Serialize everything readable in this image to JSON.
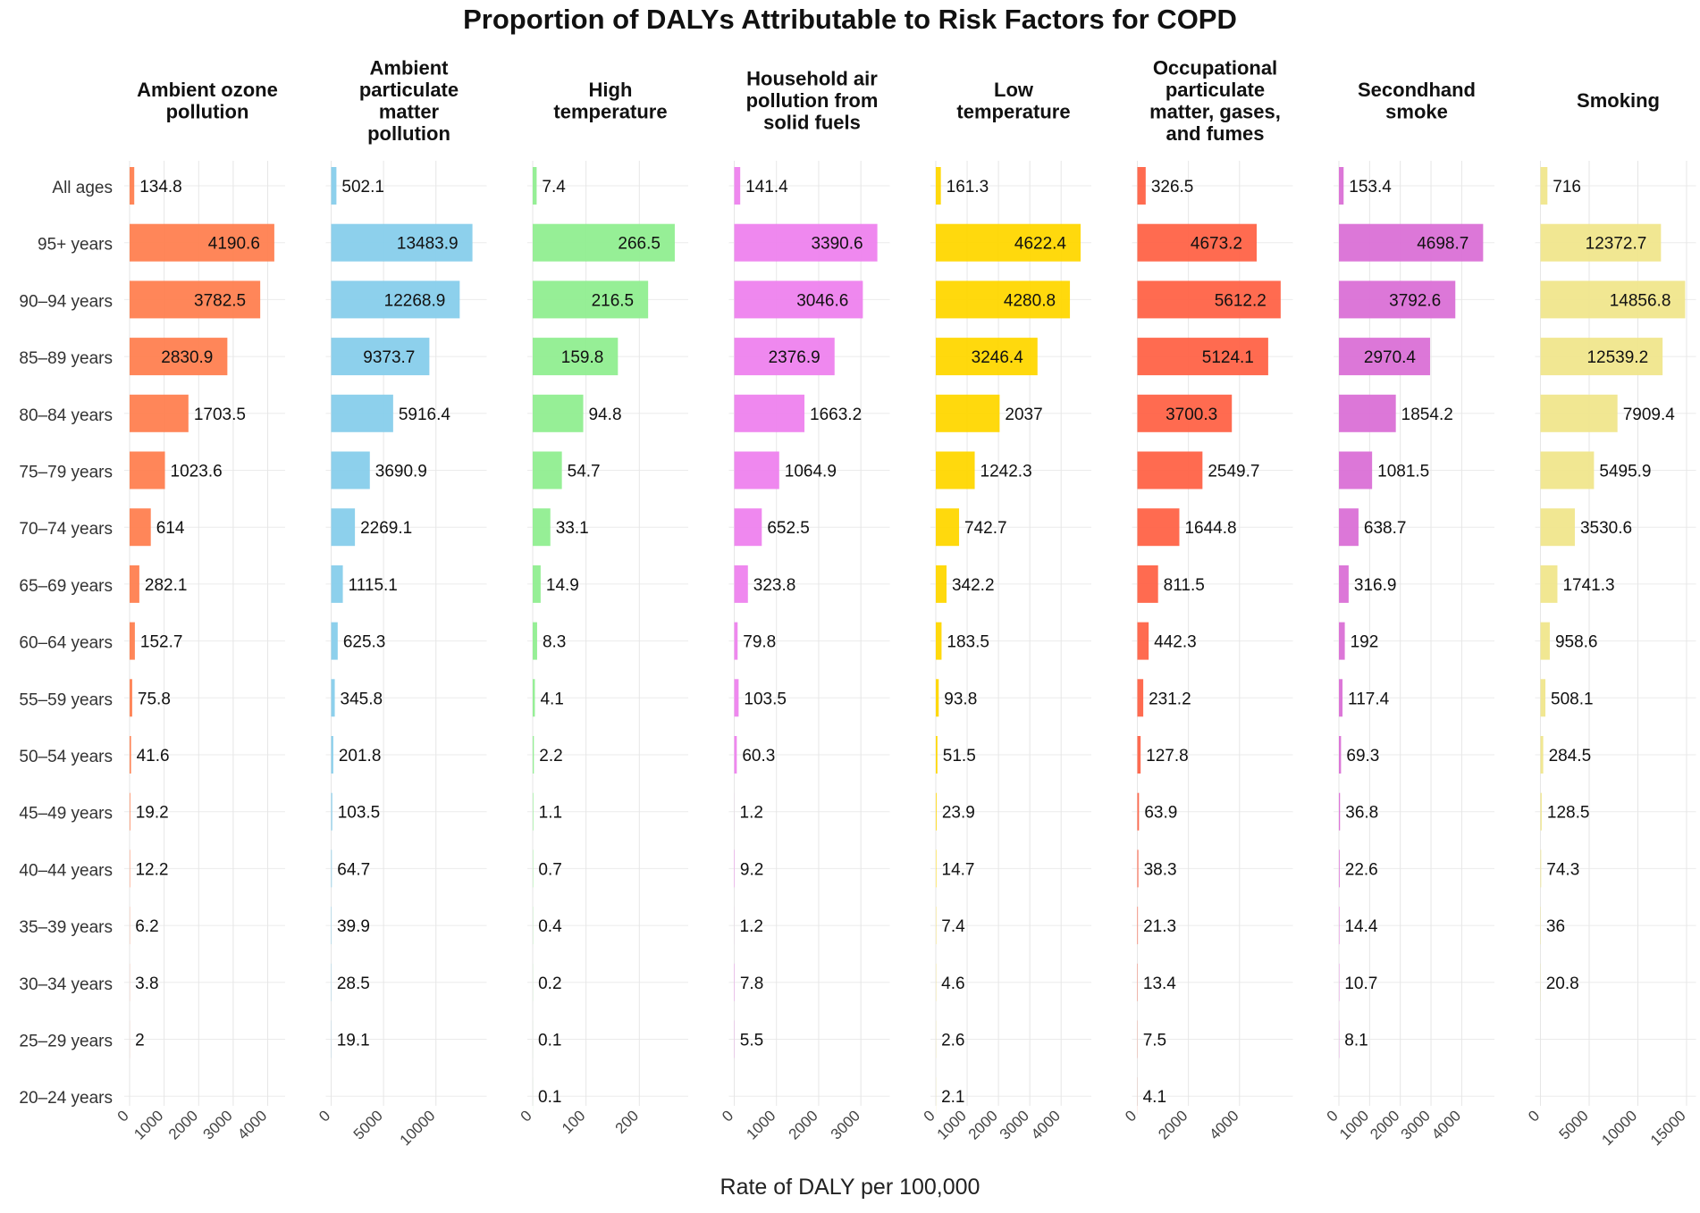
{
  "chart_data": {
    "type": "bar",
    "orientation": "horizontal",
    "title": "Proportion of DALYs Attributable to Risk Factors for COPD",
    "xlabel": "Rate of DALY per 100,000",
    "ylabel": "",
    "categories": [
      "All ages",
      "95+ years",
      "90–94 years",
      "85–89 years",
      "80–84 years",
      "75–79 years",
      "70–74 years",
      "65–69 years",
      "60–64 years",
      "55–59 years",
      "50–54 years",
      "45–49 years",
      "40–44 years",
      "35–39 years",
      "30–34 years",
      "25–29 years",
      "20–24 years"
    ],
    "series": [
      {
        "name": "Ambient ozone pollution",
        "title_lines": [
          "Ambient ozone",
          "pollution"
        ],
        "color": "#FF7F50",
        "xlim": [
          0,
          4400
        ],
        "ticks": [
          0,
          1000,
          2000,
          3000,
          4000
        ],
        "tick_labels": [
          "0",
          "1000",
          "2000",
          "3000",
          "4000"
        ],
        "values": [
          134.8,
          4190.6,
          3782.5,
          2830.9,
          1703.5,
          1023.6,
          614,
          282.1,
          152.7,
          75.8,
          41.6,
          19.2,
          12.2,
          6.2,
          3.8,
          2,
          null
        ],
        "labels": [
          "134.8",
          "4190.6",
          "3782.5",
          "2830.9",
          "1703.5",
          "1023.6",
          "614",
          "282.1",
          "152.7",
          "75.8",
          "41.6",
          "19.2",
          "12.2",
          "6.2",
          "3.8",
          "2",
          ""
        ]
      },
      {
        "name": "Ambient particulate matter pollution",
        "title_lines": [
          "Ambient",
          "particulate",
          "matter",
          "pollution"
        ],
        "color": "#87CEEB",
        "xlim": [
          0,
          14500
        ],
        "ticks": [
          0,
          5000,
          10000
        ],
        "tick_labels": [
          "0",
          "5000",
          "10000"
        ],
        "values": [
          502.1,
          13483.9,
          12268.9,
          9373.7,
          5916.4,
          3690.9,
          2269.1,
          1115.1,
          625.3,
          345.8,
          201.8,
          103.5,
          64.7,
          39.9,
          28.5,
          19.1,
          null
        ],
        "labels": [
          "502.1",
          "13483.9",
          "12268.9",
          "9373.7",
          "5916.4",
          "3690.9",
          "2269.1",
          "1115.1",
          "625.3",
          "345.8",
          "201.8",
          "103.5",
          "64.7",
          "39.9",
          "28.5",
          "19.1",
          ""
        ]
      },
      {
        "name": "High temperature",
        "title_lines": [
          "High",
          "temperature"
        ],
        "color": "#90EE90",
        "xlim": [
          0,
          285
        ],
        "ticks": [
          0,
          100,
          200
        ],
        "tick_labels": [
          "0",
          "100",
          "200"
        ],
        "values": [
          7.4,
          266.5,
          216.5,
          159.8,
          94.8,
          54.7,
          33.1,
          14.9,
          8.3,
          4.1,
          2.2,
          1.1,
          0.7,
          0.4,
          0.2,
          0.1,
          0.1
        ],
        "labels": [
          "7.4",
          "266.5",
          "216.5",
          "159.8",
          "94.8",
          "54.7",
          "33.1",
          "14.9",
          "8.3",
          "4.1",
          "2.2",
          "1.1",
          "0.7",
          "0.4",
          "0.2",
          "0.1",
          "0.1"
        ]
      },
      {
        "name": "Household air pollution from solid fuels",
        "title_lines": [
          "Household air",
          "pollution from",
          "solid fuels"
        ],
        "color": "#EE82EE",
        "xlim": [
          0,
          3600
        ],
        "ticks": [
          0,
          1000,
          2000,
          3000
        ],
        "tick_labels": [
          "0",
          "1000",
          "2000",
          "3000"
        ],
        "values": [
          141.4,
          3390.6,
          3046.6,
          2376.9,
          1663.2,
          1064.9,
          652.5,
          323.8,
          79.8,
          103.5,
          60.3,
          1.2,
          9.2,
          1.2,
          7.8,
          5.5,
          null
        ],
        "labels": [
          "141.4",
          "3390.6",
          "3046.6",
          "2376.9",
          "1663.2",
          "1064.9",
          "652.5",
          "323.8",
          "79.8",
          "103.5",
          "60.3",
          "1.2",
          "9.2",
          "1.2",
          "7.8",
          "5.5",
          ""
        ]
      },
      {
        "name": "Low temperature",
        "title_lines": [
          "Low",
          "temperature"
        ],
        "color": "#FFD700",
        "xlim": [
          0,
          4850
        ],
        "ticks": [
          0,
          1000,
          2000,
          3000,
          4000
        ],
        "tick_labels": [
          "0",
          "1000",
          "2000",
          "3000",
          "4000"
        ],
        "values": [
          161.3,
          4622.4,
          4280.8,
          3246.4,
          2037,
          1242.3,
          742.7,
          342.2,
          183.5,
          93.8,
          51.5,
          23.9,
          14.7,
          7.4,
          4.6,
          2.6,
          2.1
        ],
        "labels": [
          "161.3",
          "4622.4",
          "4280.8",
          "3246.4",
          "2037",
          "1242.3",
          "742.7",
          "342.2",
          "183.5",
          "93.8",
          "51.5",
          "23.9",
          "14.7",
          "7.4",
          "4.6",
          "2.6",
          "2.1"
        ]
      },
      {
        "name": "Occupational particulate matter, gases, and fumes",
        "title_lines": [
          "Occupational",
          "particulate",
          "matter, gases,",
          "and fumes"
        ],
        "color": "#FF6347",
        "xlim": [
          0,
          5950
        ],
        "ticks": [
          0,
          2000,
          4000
        ],
        "tick_labels": [
          "0",
          "2000",
          "4000"
        ],
        "values": [
          326.5,
          4673.2,
          5612.2,
          5124.1,
          3700.3,
          2549.7,
          1644.8,
          811.5,
          442.3,
          231.2,
          127.8,
          63.9,
          38.3,
          21.3,
          13.4,
          7.5,
          4.1
        ],
        "labels": [
          "326.5",
          "4673.2",
          "5612.2",
          "5124.1",
          "3700.3",
          "2549.7",
          "1644.8",
          "811.5",
          "442.3",
          "231.2",
          "127.8",
          "63.9",
          "38.3",
          "21.3",
          "13.4",
          "7.5",
          "4.1"
        ]
      },
      {
        "name": "Secondhand smoke",
        "title_lines": [
          "Secondhand",
          "smoke"
        ],
        "color": "#DA70D6",
        "xlim": [
          0,
          4950
        ],
        "ticks": [
          0,
          1000,
          2000,
          3000,
          4000
        ],
        "tick_labels": [
          "0",
          "1000",
          "2000",
          "3000",
          "4000"
        ],
        "values": [
          153.4,
          4698.7,
          3792.6,
          2970.4,
          1854.2,
          1081.5,
          638.7,
          316.9,
          192,
          117.4,
          69.3,
          36.8,
          22.6,
          14.4,
          10.7,
          8.1,
          null
        ],
        "labels": [
          "153.4",
          "4698.7",
          "3792.6",
          "2970.4",
          "1854.2",
          "1081.5",
          "638.7",
          "316.9",
          "192",
          "117.4",
          "69.3",
          "36.8",
          "22.6",
          "14.4",
          "10.7",
          "8.1",
          ""
        ]
      },
      {
        "name": "Smoking",
        "title_lines": [
          "Smoking"
        ],
        "color": "#F0E68C",
        "xlim": [
          0,
          15600
        ],
        "ticks": [
          0,
          5000,
          10000,
          15000
        ],
        "tick_labels": [
          "0",
          "5000",
          "10000",
          "15000"
        ],
        "values": [
          716,
          12372.7,
          14856.8,
          12539.2,
          7909.4,
          5495.9,
          3530.6,
          1741.3,
          958.6,
          508.1,
          284.5,
          128.5,
          74.3,
          36,
          20.8,
          null,
          null
        ],
        "labels": [
          "716",
          "12372.7",
          "14856.8",
          "12539.2",
          "7909.4",
          "5495.9",
          "3530.6",
          "1741.3",
          "958.6",
          "508.1",
          "284.5",
          "128.5",
          "74.3",
          "36",
          "20.8",
          "",
          ""
        ]
      }
    ],
    "grid": true,
    "legend": "none"
  }
}
